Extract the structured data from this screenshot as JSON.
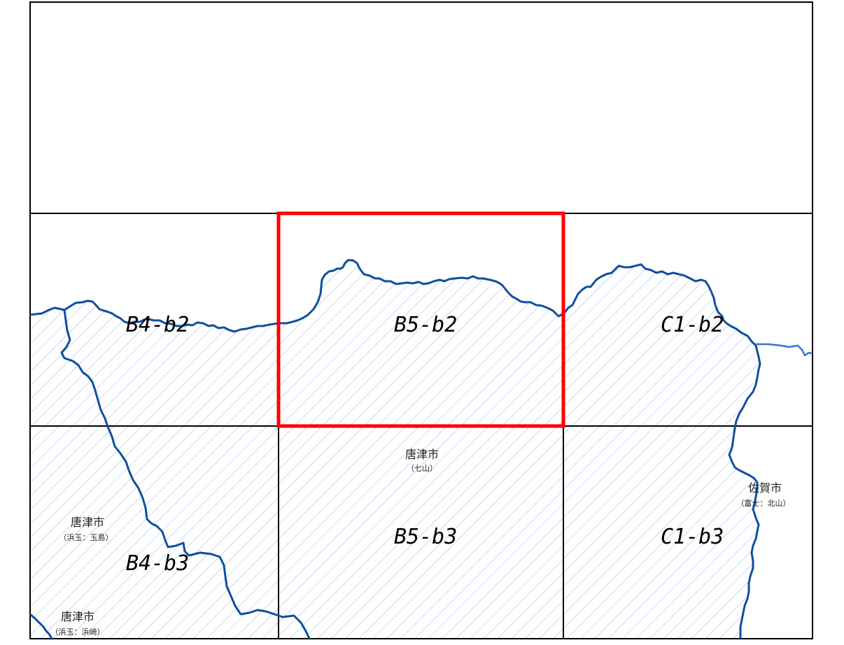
{
  "map": {
    "colors": {
      "background": "#ffffff",
      "grid_line": "#000000",
      "selection": "#ff0000",
      "boundary": "#0f4fa0",
      "river": "#3b6fd8",
      "hatch": "#a9bfe6"
    },
    "selected_cell": "B5-b2",
    "grid_labels": [
      {
        "id": "B4-b2",
        "text": "B4-b2"
      },
      {
        "id": "B5-b2",
        "text": "B5-b2"
      },
      {
        "id": "C1-b2",
        "text": "C1-b2"
      },
      {
        "id": "B4-b3",
        "text": "B4-b3"
      },
      {
        "id": "B5-b3",
        "text": "B5-b3"
      },
      {
        "id": "C1-b3",
        "text": "C1-b3"
      }
    ],
    "places": [
      {
        "name": "唐津市",
        "sub": "（七山）"
      },
      {
        "name": "佐賀市",
        "sub": "（富士：北山）"
      },
      {
        "name": "唐津市",
        "sub": "（浜玉：玉島）"
      },
      {
        "name": "唐津市",
        "sub": "（浜玉：浜崎）"
      }
    ]
  }
}
